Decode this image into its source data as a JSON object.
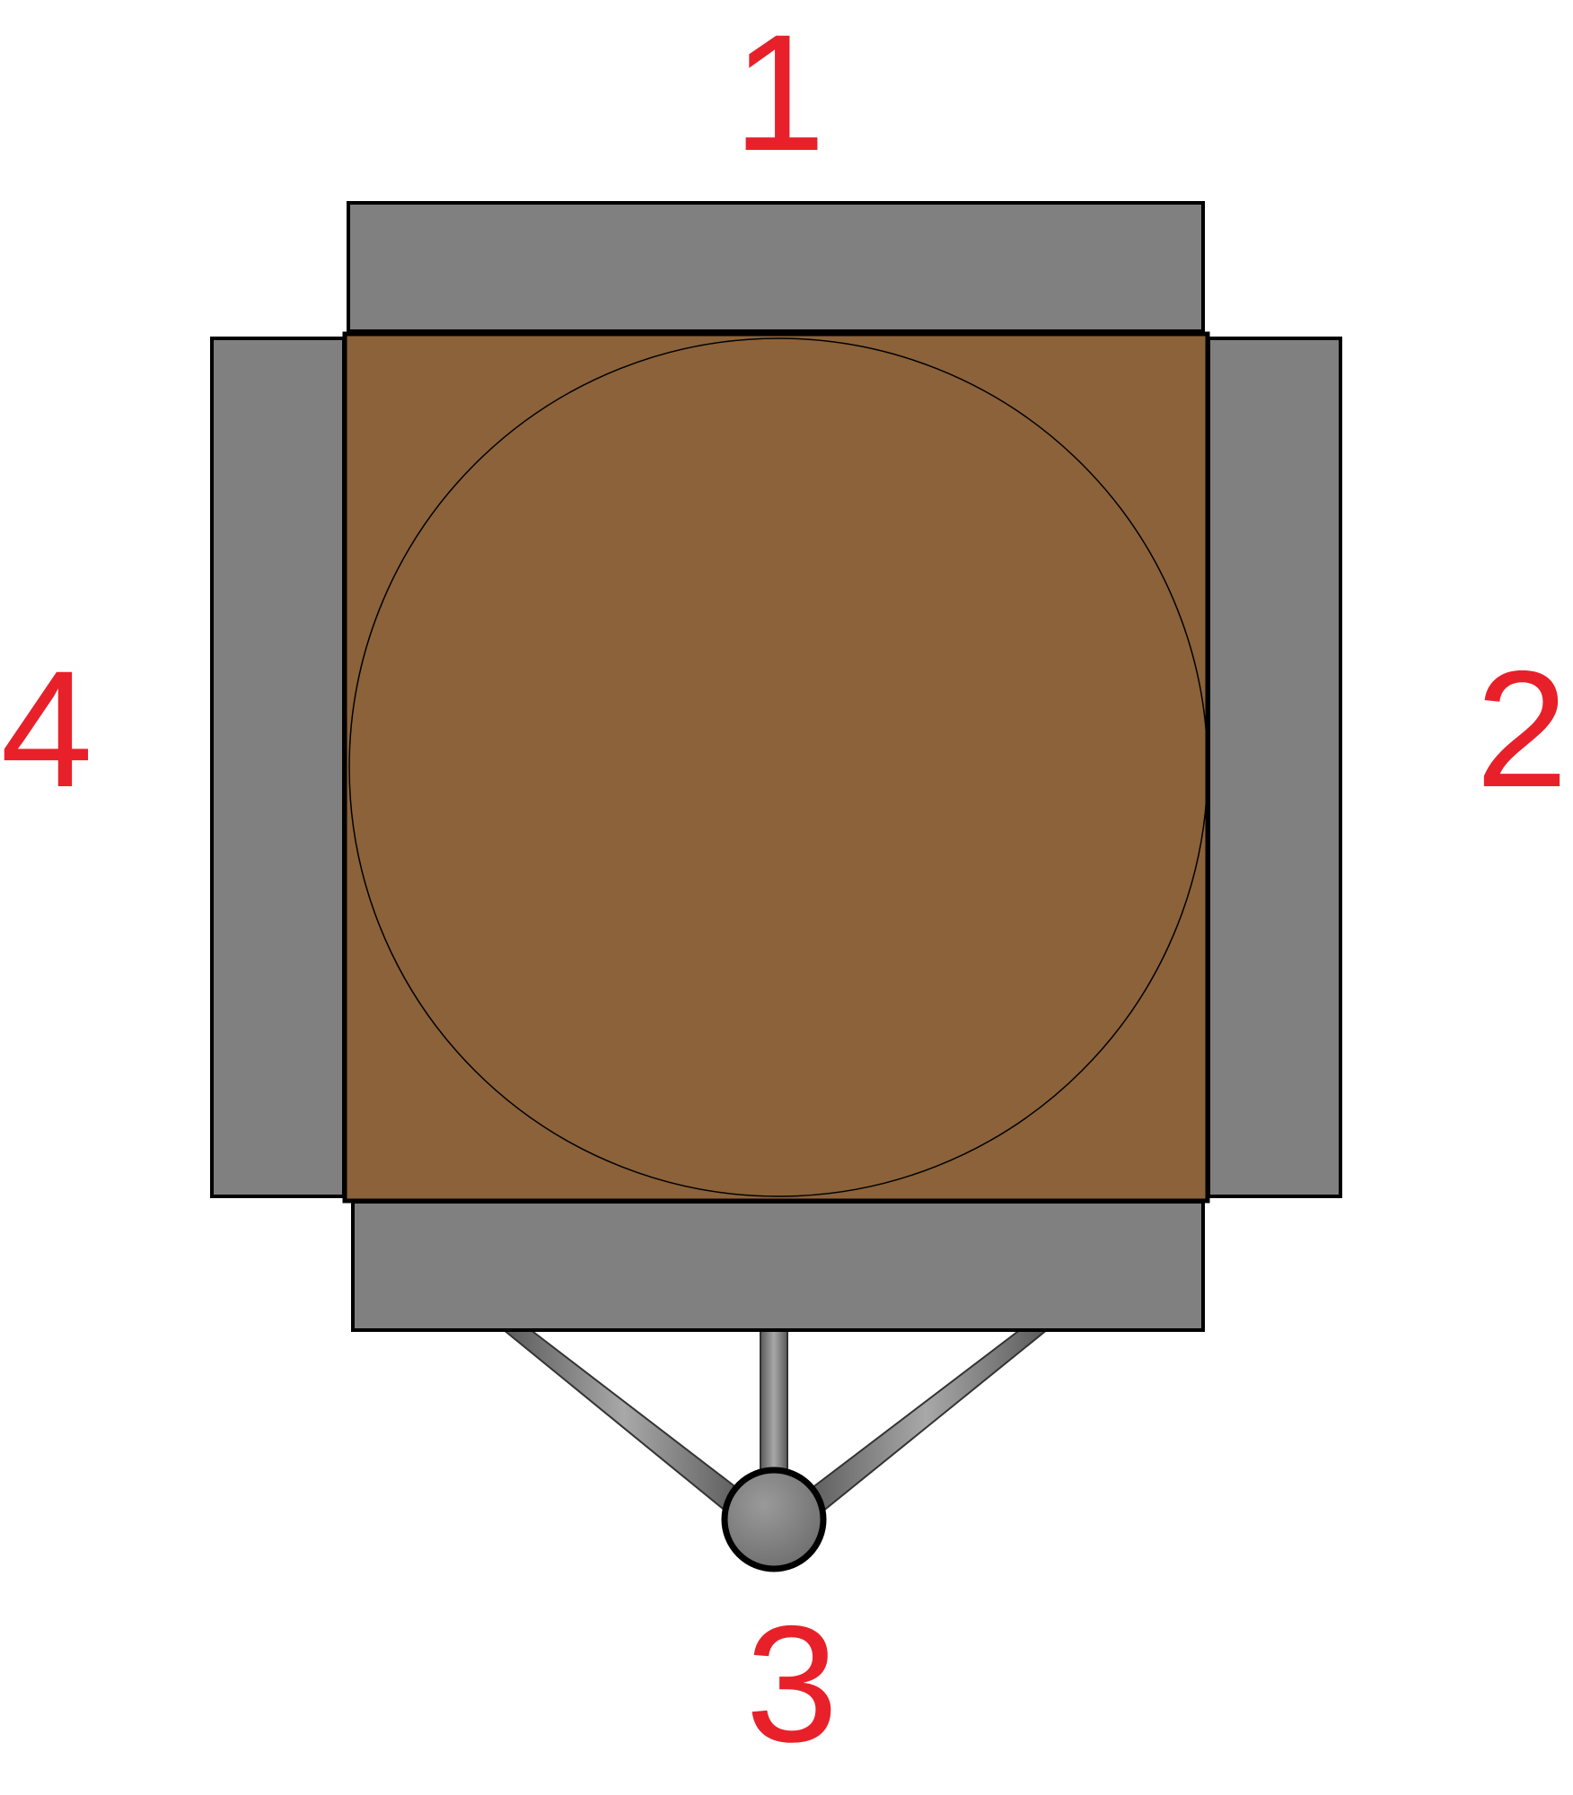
{
  "labels": {
    "side_1": "1",
    "side_2": "2",
    "side_3": "3",
    "side_4": "4"
  },
  "colors": {
    "label": "#e8202a",
    "panel": "#808080",
    "table_top": "#8b6239",
    "outline": "#000000",
    "background": "#ffffff"
  },
  "icons": {
    "table": "square-table-with-circular-top",
    "chair": "rolling-chair-base"
  }
}
